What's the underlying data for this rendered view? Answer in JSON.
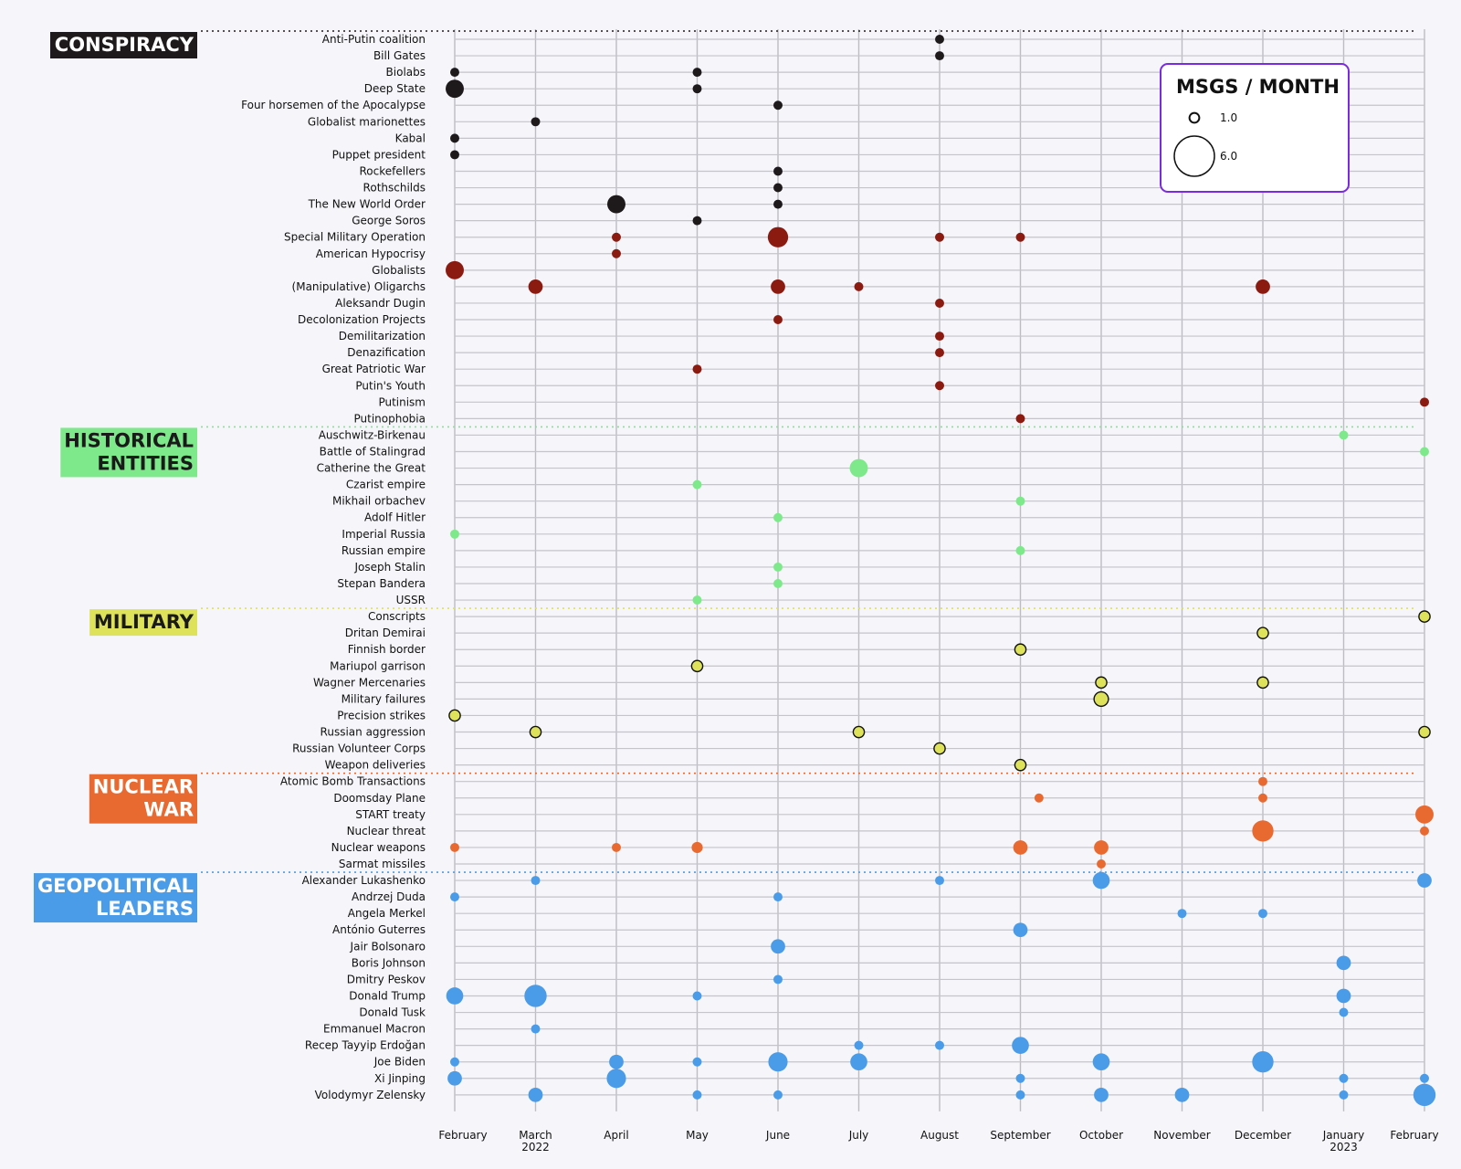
{
  "chart_data": {
    "type": "scatter",
    "x_ticks": [
      {
        "label": "February",
        "sub": ""
      },
      {
        "label": "March",
        "sub": "2022"
      },
      {
        "label": "April",
        "sub": ""
      },
      {
        "label": "May",
        "sub": ""
      },
      {
        "label": "June",
        "sub": ""
      },
      {
        "label": "July",
        "sub": ""
      },
      {
        "label": "August",
        "sub": ""
      },
      {
        "label": "September",
        "sub": ""
      },
      {
        "label": "October",
        "sub": ""
      },
      {
        "label": "November",
        "sub": ""
      },
      {
        "label": "December",
        "sub": ""
      },
      {
        "label": "January",
        "sub": "2023"
      },
      {
        "label": "February",
        "sub": ""
      }
    ],
    "legend": {
      "title": "MSGS / MONTH",
      "items": [
        {
          "label": "1.0",
          "value": 1
        },
        {
          "label": "6.0",
          "value": 6
        }
      ],
      "border_color": "#7a2be0"
    },
    "categories": [
      {
        "name": "CONSPIRACY",
        "bg": "#1e1a1c",
        "fg": "#ffffff",
        "dot": "#1e1a1c",
        "rows": [
          "Anti-Putin coalition",
          "Bill Gates",
          "Biolabs",
          "Deep State",
          "Four horsemen of the Apocalypse",
          "Globalist marionettes",
          "Kabal",
          "Puppet president",
          "Rockefellers",
          "Rothschilds",
          "The New World Order",
          "George Soros",
          "Special Military Operation",
          "American Hypocrisy",
          "Globalists",
          "(Manipulative) Oligarchs",
          "Aleksandr Dugin",
          "Decolonization Projects",
          "Demilitarization",
          "Denazification",
          "Great Patriotic War",
          "Putin's Youth",
          "Putinism",
          "Putinophobia"
        ]
      },
      {
        "name": "HISTORICAL ENTITIES",
        "bg": "#7ee98a",
        "fg": "#1a1a1a",
        "dot": "#7ee98a",
        "rows": [
          "Auschwitz-Birkenau",
          "Battle of Stalingrad",
          "Catherine the Great",
          "Czarist empire",
          "Mikhail orbachev",
          "Adolf Hitler",
          "Imperial Russia",
          "Russian empire",
          "Joseph Stalin",
          "Stepan Bandera",
          "USSR"
        ]
      },
      {
        "name": "MILITARY",
        "bg": "#dde25a",
        "fg": "#1a1a1a",
        "dot": "#dde25a",
        "rows": [
          "Conscripts",
          "Dritan Demirai",
          "Finnish border",
          "Mariupol garrison",
          "Wagner Mercenaries",
          "Military failures",
          "Precision strikes",
          "Russian aggression",
          "Russian Volunteer Corps",
          "Weapon deliveries"
        ]
      },
      {
        "name": "NUCLEAR WAR",
        "bg": "#e96a30",
        "fg": "#ffffff",
        "dot": "#e96a30",
        "rows": [
          "Atomic Bomb Transactions",
          "Doomsday Plane",
          "START treaty",
          "Nuclear threat",
          "Nuclear weapons",
          "Sarmat missiles"
        ]
      },
      {
        "name": "GEOPOLITICAL LEADERS",
        "bg": "#4a9be8",
        "fg": "#ffffff",
        "dot": "#4a9be8",
        "rows": [
          "Alexander Lukashenko",
          "Andrzej Duda",
          "Angela Merkel",
          "António Guterres",
          "Jair Bolsonaro",
          "Boris Johnson",
          "Dmitry Peskov",
          "Donald Trump",
          "Donald Tusk",
          "Emmanuel Macron",
          "Recep Tayyip Erdoğan",
          "Joe Biden",
          "Xi Jinping",
          "Volodymyr Zelensky"
        ]
      }
    ],
    "points": [
      {
        "row": 0,
        "x": 6,
        "v": 1.0,
        "c": "#1e1a1c"
      },
      {
        "row": 1,
        "x": 6,
        "v": 1.0,
        "c": "#1e1a1c"
      },
      {
        "row": 2,
        "x": 0,
        "v": 1.0,
        "c": "#1e1a1c"
      },
      {
        "row": 2,
        "x": 3,
        "v": 1.0,
        "c": "#1e1a1c"
      },
      {
        "row": 3,
        "x": 0,
        "v": 4.0,
        "c": "#1e1a1c"
      },
      {
        "row": 3,
        "x": 3,
        "v": 1.0,
        "c": "#1e1a1c"
      },
      {
        "row": 4,
        "x": 4,
        "v": 1.0,
        "c": "#1e1a1c"
      },
      {
        "row": 5,
        "x": 1,
        "v": 1.0,
        "c": "#1e1a1c"
      },
      {
        "row": 6,
        "x": 0,
        "v": 1.0,
        "c": "#1e1a1c"
      },
      {
        "row": 7,
        "x": 0,
        "v": 1.0,
        "c": "#1e1a1c"
      },
      {
        "row": 8,
        "x": 4,
        "v": 1.0,
        "c": "#1e1a1c"
      },
      {
        "row": 9,
        "x": 4,
        "v": 1.0,
        "c": "#1e1a1c"
      },
      {
        "row": 10,
        "x": 2,
        "v": 4.0,
        "c": "#1e1a1c"
      },
      {
        "row": 10,
        "x": 4,
        "v": 1.0,
        "c": "#1e1a1c"
      },
      {
        "row": 11,
        "x": 3,
        "v": 1.0,
        "c": "#1e1a1c"
      },
      {
        "row": 12,
        "x": 2,
        "v": 1.0,
        "c": "#8b1a10"
      },
      {
        "row": 12,
        "x": 4,
        "v": 5.0,
        "c": "#8b1a10"
      },
      {
        "row": 12,
        "x": 6,
        "v": 1.0,
        "c": "#8b1a10"
      },
      {
        "row": 12,
        "x": 7,
        "v": 1.0,
        "c": "#8b1a10"
      },
      {
        "row": 13,
        "x": 2,
        "v": 1.0,
        "c": "#8b1a10"
      },
      {
        "row": 14,
        "x": 0,
        "v": 4.0,
        "c": "#8b1a10"
      },
      {
        "row": 15,
        "x": 1,
        "v": 2.5,
        "c": "#8b1a10"
      },
      {
        "row": 15,
        "x": 4,
        "v": 2.5,
        "c": "#8b1a10"
      },
      {
        "row": 15,
        "x": 5,
        "v": 1.0,
        "c": "#8b1a10"
      },
      {
        "row": 15,
        "x": 10,
        "v": 2.5,
        "c": "#8b1a10"
      },
      {
        "row": 16,
        "x": 6,
        "v": 1.0,
        "c": "#8b1a10"
      },
      {
        "row": 17,
        "x": 4,
        "v": 1.0,
        "c": "#8b1a10"
      },
      {
        "row": 18,
        "x": 6,
        "v": 1.0,
        "c": "#8b1a10"
      },
      {
        "row": 19,
        "x": 6,
        "v": 1.0,
        "c": "#8b1a10"
      },
      {
        "row": 20,
        "x": 3,
        "v": 1.0,
        "c": "#8b1a10"
      },
      {
        "row": 21,
        "x": 6,
        "v": 1.0,
        "c": "#8b1a10"
      },
      {
        "row": 22,
        "x": 12,
        "v": 1.0,
        "c": "#8b1a10"
      },
      {
        "row": 23,
        "x": 7,
        "v": 1.0,
        "c": "#8b1a10"
      },
      {
        "row": 24,
        "x": 11,
        "v": 1.0,
        "c": "#7ee98a"
      },
      {
        "row": 25,
        "x": 12,
        "v": 1.0,
        "c": "#7ee98a"
      },
      {
        "row": 26,
        "x": 5,
        "v": 4.0,
        "c": "#7ee98a"
      },
      {
        "row": 27,
        "x": 3,
        "v": 1.0,
        "c": "#7ee98a"
      },
      {
        "row": 28,
        "x": 7,
        "v": 1.0,
        "c": "#7ee98a"
      },
      {
        "row": 29,
        "x": 4,
        "v": 1.0,
        "c": "#7ee98a"
      },
      {
        "row": 30,
        "x": 0,
        "v": 1.0,
        "c": "#7ee98a"
      },
      {
        "row": 31,
        "x": 7,
        "v": 1.0,
        "c": "#7ee98a"
      },
      {
        "row": 32,
        "x": 4,
        "v": 1.0,
        "c": "#7ee98a"
      },
      {
        "row": 33,
        "x": 4,
        "v": 1.0,
        "c": "#7ee98a"
      },
      {
        "row": 34,
        "x": 3,
        "v": 1.0,
        "c": "#7ee98a"
      },
      {
        "row": 35,
        "x": 12,
        "v": 1.5,
        "c": "#dde25a"
      },
      {
        "row": 36,
        "x": 10,
        "v": 1.5,
        "c": "#dde25a"
      },
      {
        "row": 37,
        "x": 7,
        "v": 1.5,
        "c": "#dde25a"
      },
      {
        "row": 38,
        "x": 3,
        "v": 1.5,
        "c": "#dde25a"
      },
      {
        "row": 39,
        "x": 8,
        "v": 1.5,
        "c": "#dde25a"
      },
      {
        "row": 39,
        "x": 10,
        "v": 1.5,
        "c": "#dde25a"
      },
      {
        "row": 40,
        "x": 8,
        "v": 2.5,
        "c": "#dde25a"
      },
      {
        "row": 41,
        "x": 0,
        "v": 1.5,
        "c": "#dde25a"
      },
      {
        "row": 42,
        "x": 1,
        "v": 1.5,
        "c": "#dde25a"
      },
      {
        "row": 42,
        "x": 5,
        "v": 1.5,
        "c": "#dde25a"
      },
      {
        "row": 42,
        "x": 12,
        "v": 1.5,
        "c": "#dde25a"
      },
      {
        "row": 43,
        "x": 6,
        "v": 1.5,
        "c": "#dde25a"
      },
      {
        "row": 44,
        "x": 7,
        "v": 1.5,
        "c": "#dde25a"
      },
      {
        "row": 45,
        "x": 10,
        "v": 1.0,
        "c": "#e96a30"
      },
      {
        "row": 46,
        "x": 7.23,
        "v": 1.0,
        "c": "#e96a30"
      },
      {
        "row": 46,
        "x": 10,
        "v": 1.0,
        "c": "#e96a30"
      },
      {
        "row": 47,
        "x": 12,
        "v": 4.0,
        "c": "#e96a30"
      },
      {
        "row": 48,
        "x": 10,
        "v": 5.5,
        "c": "#e96a30"
      },
      {
        "row": 48,
        "x": 12,
        "v": 1.0,
        "c": "#e96a30"
      },
      {
        "row": 49,
        "x": 0,
        "v": 1.0,
        "c": "#e96a30"
      },
      {
        "row": 49,
        "x": 2,
        "v": 1.0,
        "c": "#e96a30"
      },
      {
        "row": 49,
        "x": 3,
        "v": 1.5,
        "c": "#e96a30"
      },
      {
        "row": 49,
        "x": 7,
        "v": 2.5,
        "c": "#e96a30"
      },
      {
        "row": 49,
        "x": 8,
        "v": 2.5,
        "c": "#e96a30"
      },
      {
        "row": 50,
        "x": 8,
        "v": 1.0,
        "c": "#e96a30"
      },
      {
        "row": 51,
        "x": 1,
        "v": 1.0,
        "c": "#4a9be8"
      },
      {
        "row": 51,
        "x": 6,
        "v": 1.0,
        "c": "#4a9be8"
      },
      {
        "row": 51,
        "x": 8,
        "v": 3.5,
        "c": "#4a9be8"
      },
      {
        "row": 51,
        "x": 12,
        "v": 2.5,
        "c": "#4a9be8"
      },
      {
        "row": 52,
        "x": 0,
        "v": 1.0,
        "c": "#4a9be8"
      },
      {
        "row": 52,
        "x": 4,
        "v": 1.0,
        "c": "#4a9be8"
      },
      {
        "row": 53,
        "x": 9,
        "v": 1.0,
        "c": "#4a9be8"
      },
      {
        "row": 53,
        "x": 10,
        "v": 1.0,
        "c": "#4a9be8"
      },
      {
        "row": 54,
        "x": 7,
        "v": 2.5,
        "c": "#4a9be8"
      },
      {
        "row": 55,
        "x": 4,
        "v": 2.5,
        "c": "#4a9be8"
      },
      {
        "row": 56,
        "x": 11,
        "v": 2.5,
        "c": "#4a9be8"
      },
      {
        "row": 57,
        "x": 4,
        "v": 1.0,
        "c": "#4a9be8"
      },
      {
        "row": 58,
        "x": 0,
        "v": 3.5,
        "c": "#4a9be8"
      },
      {
        "row": 58,
        "x": 1,
        "v": 6.0,
        "c": "#4a9be8"
      },
      {
        "row": 58,
        "x": 3,
        "v": 1.0,
        "c": "#4a9be8"
      },
      {
        "row": 58,
        "x": 11,
        "v": 2.5,
        "c": "#4a9be8"
      },
      {
        "row": 59,
        "x": 11,
        "v": 1.0,
        "c": "#4a9be8"
      },
      {
        "row": 60,
        "x": 1,
        "v": 1.0,
        "c": "#4a9be8"
      },
      {
        "row": 61,
        "x": 5,
        "v": 1.0,
        "c": "#4a9be8"
      },
      {
        "row": 61,
        "x": 6,
        "v": 1.0,
        "c": "#4a9be8"
      },
      {
        "row": 61,
        "x": 7,
        "v": 3.5,
        "c": "#4a9be8"
      },
      {
        "row": 62,
        "x": 0,
        "v": 1.0,
        "c": "#4a9be8"
      },
      {
        "row": 62,
        "x": 2,
        "v": 2.5,
        "c": "#4a9be8"
      },
      {
        "row": 62,
        "x": 3,
        "v": 1.0,
        "c": "#4a9be8"
      },
      {
        "row": 62,
        "x": 4,
        "v": 4.5,
        "c": "#4a9be8"
      },
      {
        "row": 62,
        "x": 5,
        "v": 3.5,
        "c": "#4a9be8"
      },
      {
        "row": 62,
        "x": 8,
        "v": 3.5,
        "c": "#4a9be8"
      },
      {
        "row": 62,
        "x": 10,
        "v": 5.5,
        "c": "#4a9be8"
      },
      {
        "row": 63,
        "x": 0,
        "v": 2.5,
        "c": "#4a9be8"
      },
      {
        "row": 63,
        "x": 2,
        "v": 4.5,
        "c": "#4a9be8"
      },
      {
        "row": 63,
        "x": 7,
        "v": 1.0,
        "c": "#4a9be8"
      },
      {
        "row": 63,
        "x": 11,
        "v": 1.0,
        "c": "#4a9be8"
      },
      {
        "row": 63,
        "x": 12,
        "v": 1.0,
        "c": "#4a9be8"
      },
      {
        "row": 64,
        "x": 1,
        "v": 2.5,
        "c": "#4a9be8"
      },
      {
        "row": 64,
        "x": 3,
        "v": 1.0,
        "c": "#4a9be8"
      },
      {
        "row": 64,
        "x": 4,
        "v": 1.0,
        "c": "#4a9be8"
      },
      {
        "row": 64,
        "x": 7,
        "v": 1.0,
        "c": "#4a9be8"
      },
      {
        "row": 64,
        "x": 8,
        "v": 2.5,
        "c": "#4a9be8"
      },
      {
        "row": 64,
        "x": 9,
        "v": 2.5,
        "c": "#4a9be8"
      },
      {
        "row": 64,
        "x": 11,
        "v": 1.0,
        "c": "#4a9be8"
      },
      {
        "row": 64,
        "x": 12,
        "v": 6.0,
        "c": "#4a9be8"
      }
    ]
  }
}
